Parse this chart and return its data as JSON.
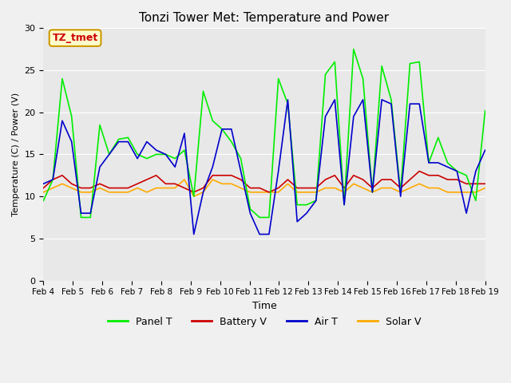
{
  "title": "Tonzi Tower Met: Temperature and Power",
  "xlabel": "Time",
  "ylabel": "Temperature (C) / Power (V)",
  "ylim": [
    0,
    30
  ],
  "xlim": [
    0,
    15
  ],
  "background_color": "#e8e8e8",
  "plot_bg": "#e8e8e8",
  "annotation_text": "TZ_tmet",
  "annotation_color": "#cc0000",
  "annotation_bg": "#ffffcc",
  "annotation_border": "#cc9900",
  "xtick_labels": [
    "Feb 4",
    "Feb 5",
    "Feb 6",
    "Feb 7",
    "Feb 8",
    "Feb 9",
    "Feb 10",
    "Feb 11",
    "Feb 12",
    "Feb 13",
    "Feb 14",
    "Feb 15",
    "Feb 16",
    "Feb 17",
    "Feb 18",
    "Feb 19"
  ],
  "ytick_labels": [
    "0",
    "5",
    "10",
    "15",
    "20",
    "25",
    "30"
  ],
  "ytick_values": [
    0,
    5,
    10,
    15,
    20,
    25,
    30
  ],
  "legend": [
    {
      "label": "Panel T",
      "color": "#00ee00"
    },
    {
      "label": "Battery V",
      "color": "#cc0000"
    },
    {
      "label": "Air T",
      "color": "#0000cc"
    },
    {
      "label": "Solar V",
      "color": "#ffaa00"
    }
  ],
  "panel_t": [
    9.5,
    12.0,
    24.0,
    19.5,
    7.5,
    7.5,
    18.5,
    15.0,
    16.8,
    17.0,
    15.0,
    14.5,
    15.0,
    15.0,
    14.5,
    15.5,
    10.0,
    22.5,
    19.0,
    18.0,
    16.5,
    14.5,
    8.5,
    7.5,
    7.5,
    24.0,
    21.0,
    9.0,
    9.0,
    9.5,
    24.5,
    26.0,
    9.0,
    27.5,
    24.0,
    10.5,
    25.5,
    21.5,
    10.5,
    25.8,
    26.0,
    14.0,
    17.0,
    14.0,
    13.0,
    12.5,
    9.5,
    20.2
  ],
  "battery_v": [
    11.0,
    12.0,
    12.5,
    11.5,
    11.0,
    11.0,
    11.5,
    11.0,
    11.0,
    11.0,
    11.5,
    12.0,
    12.5,
    11.5,
    11.5,
    11.0,
    10.5,
    11.0,
    12.5,
    12.5,
    12.5,
    12.0,
    11.0,
    11.0,
    10.5,
    11.0,
    12.0,
    11.0,
    11.0,
    11.0,
    12.0,
    12.5,
    11.0,
    12.5,
    12.0,
    11.0,
    12.0,
    12.0,
    11.0,
    12.0,
    13.0,
    12.5,
    12.5,
    12.0,
    12.0,
    11.5,
    11.5,
    11.5
  ],
  "air_t": [
    11.5,
    12.0,
    19.0,
    16.5,
    8.0,
    8.0,
    13.5,
    15.0,
    16.5,
    16.5,
    14.5,
    16.5,
    15.5,
    15.0,
    13.5,
    17.5,
    5.5,
    10.5,
    13.5,
    18.0,
    18.0,
    13.0,
    8.0,
    5.5,
    5.5,
    13.0,
    21.5,
    7.0,
    8.0,
    9.5,
    19.5,
    21.5,
    9.0,
    19.5,
    21.5,
    10.5,
    21.5,
    21.0,
    10.0,
    21.0,
    21.0,
    14.0,
    14.0,
    13.5,
    13.0,
    8.0,
    13.0,
    15.5
  ],
  "solar_v": [
    10.5,
    11.0,
    11.5,
    11.0,
    10.5,
    10.5,
    11.0,
    10.5,
    10.5,
    10.5,
    11.0,
    10.5,
    11.0,
    11.0,
    11.0,
    12.0,
    10.0,
    10.5,
    12.0,
    11.5,
    11.5,
    11.0,
    10.5,
    10.5,
    10.5,
    10.5,
    11.5,
    10.5,
    10.5,
    10.5,
    11.0,
    11.0,
    10.5,
    11.5,
    11.0,
    10.5,
    11.0,
    11.0,
    10.5,
    11.0,
    11.5,
    11.0,
    11.0,
    10.5,
    10.5,
    10.5,
    10.5,
    11.0
  ]
}
